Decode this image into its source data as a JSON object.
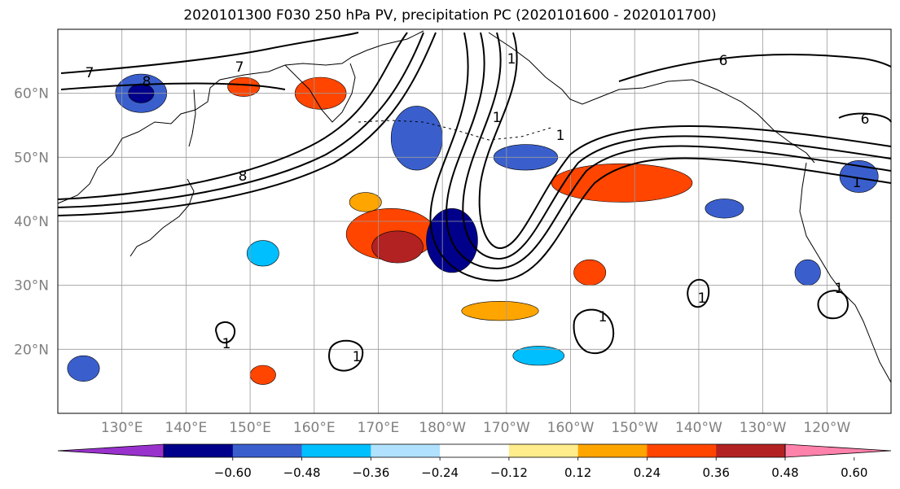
{
  "title": "2020101300 F030 250 hPa PV, precipitation PC (2020101600 - 2020101700)",
  "map": {
    "lat_labels": [
      "60°N",
      "50°N",
      "40°N",
      "30°N",
      "20°N"
    ],
    "lat_values": [
      60,
      50,
      40,
      30,
      20
    ],
    "lon_labels": [
      "130°E",
      "140°E",
      "150°E",
      "160°E",
      "170°E",
      "180°W",
      "170°W",
      "160°W",
      "150°W",
      "140°W",
      "130°W",
      "120°W"
    ],
    "lon_values": [
      130,
      140,
      150,
      160,
      170,
      180,
      190,
      200,
      210,
      220,
      230,
      240
    ],
    "lon_range": [
      120,
      250
    ],
    "lat_range": [
      10,
      70
    ],
    "gridlines": true,
    "label_color": "#808080",
    "coastline_color": "#000000"
  },
  "colorbar": {
    "ticks": [
      "−0.60",
      "−0.48",
      "−0.36",
      "−0.24",
      "−0.12",
      "0.12",
      "0.24",
      "0.36",
      "0.48",
      "0.60"
    ],
    "colors": [
      "#9932cc",
      "#00008b",
      "#3a5fcd",
      "#00bfff",
      "#b0e2ff",
      "#ffffff",
      "#ffec8b",
      "#ffa500",
      "#ff4500",
      "#b22222",
      "#ff82ab"
    ],
    "extend": "both"
  },
  "contour_labels": [
    "7",
    "8",
    "7",
    "8",
    "6",
    "6",
    "1",
    "1",
    "1",
    "1",
    "1",
    "1",
    "1",
    "1",
    "1"
  ],
  "anomaly_blobs": [
    {
      "lon": 133,
      "lat": 60,
      "rx": 4,
      "ry": 3,
      "level": "-0.36",
      "color": "#3a5fcd"
    },
    {
      "lon": 133,
      "lat": 60,
      "rx": 2,
      "ry": 1.5,
      "level": "-0.48",
      "color": "#00008b"
    },
    {
      "lon": 149,
      "lat": 61,
      "rx": 2.5,
      "ry": 1.5,
      "level": "0.36",
      "color": "#ff4500"
    },
    {
      "lon": 161,
      "lat": 60,
      "rx": 4,
      "ry": 2.5,
      "level": "0.36",
      "color": "#ff4500"
    },
    {
      "lon": 168,
      "lat": 43,
      "rx": 2.5,
      "ry": 1.5,
      "level": "0.24",
      "color": "#ffa500"
    },
    {
      "lon": 176,
      "lat": 53,
      "rx": 4,
      "ry": 5,
      "level": "-0.36",
      "color": "#3a5fcd"
    },
    {
      "lon": 172,
      "lat": 38,
      "rx": 7,
      "ry": 4,
      "level": "0.36",
      "color": "#ff4500"
    },
    {
      "lon": 173,
      "lat": 36,
      "rx": 4,
      "ry": 2.5,
      "level": "0.48",
      "color": "#b22222"
    },
    {
      "lon": 181.5,
      "lat": 37,
      "rx": 4,
      "ry": 5,
      "level": "-0.48",
      "color": "#00008b"
    },
    {
      "lon": 193,
      "lat": 50,
      "rx": 5,
      "ry": 2,
      "level": "-0.36",
      "color": "#3a5fcd"
    },
    {
      "lon": 208,
      "lat": 46,
      "rx": 11,
      "ry": 3,
      "level": "0.36",
      "color": "#ff4500"
    },
    {
      "lon": 203,
      "lat": 32,
      "rx": 2.5,
      "ry": 2,
      "level": "0.36",
      "color": "#ff4500"
    },
    {
      "lon": 189,
      "lat": 26,
      "rx": 6,
      "ry": 1.5,
      "level": "0.24",
      "color": "#ffa500"
    },
    {
      "lon": 195,
      "lat": 19,
      "rx": 4,
      "ry": 1.5,
      "level": "-0.24",
      "color": "#00bfff"
    },
    {
      "lon": 152,
      "lat": 35,
      "rx": 2.5,
      "ry": 2,
      "level": "-0.24",
      "color": "#00bfff"
    },
    {
      "lon": 152,
      "lat": 16,
      "rx": 2,
      "ry": 1.5,
      "level": "0.36",
      "color": "#ff4500"
    },
    {
      "lon": 124,
      "lat": 17,
      "rx": 2.5,
      "ry": 2,
      "level": "-0.36",
      "color": "#3a5fcd"
    },
    {
      "lon": 224,
      "lat": 42,
      "rx": 3,
      "ry": 1.5,
      "level": "-0.36",
      "color": "#3a5fcd"
    },
    {
      "lon": 237,
      "lat": 32,
      "rx": 2,
      "ry": 2,
      "level": "-0.36",
      "color": "#3a5fcd"
    },
    {
      "lon": 245,
      "lat": 47,
      "rx": 3,
      "ry": 2.5,
      "level": "-0.36",
      "color": "#3a5fcd"
    }
  ]
}
